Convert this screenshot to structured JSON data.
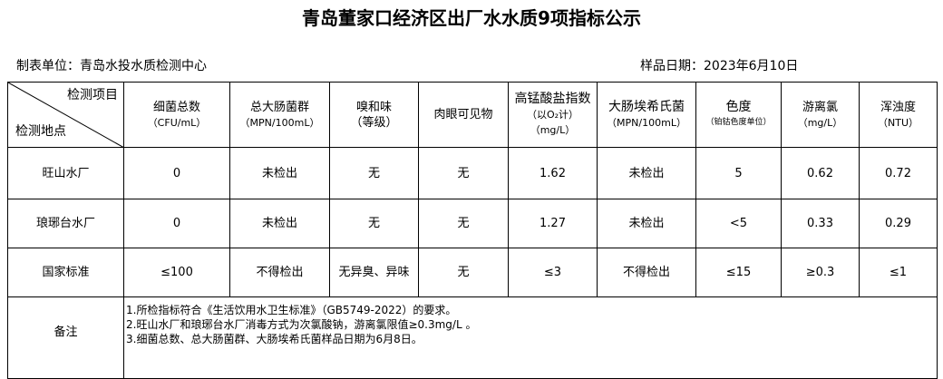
{
  "title": "青岛董家口经济区出厂水水质9项指标公示",
  "unit": "制表单位：青岛水投水质检测中心",
  "date": "样品日期：2023年6月10日",
  "corner": {
    "item": "检测项目",
    "site": "检测地点"
  },
  "headers": [
    {
      "name": "细菌总数",
      "unit": "（CFU/mL）"
    },
    {
      "name": "总大肠菌群",
      "unit": "（MPN/100mL）"
    },
    {
      "name": "嗅和味",
      "unit": "（等级）"
    },
    {
      "name": "肉眼可见物",
      "unit": ""
    },
    {
      "name": "高锰酸盐指数",
      "unit": "（以O₂计）",
      "unit2": "（mg/L）"
    },
    {
      "name": "大肠埃希氏菌",
      "unit": "（MPN/100mL）"
    },
    {
      "name": "色度",
      "unit": "（铂钴色度单位）"
    },
    {
      "name": "游离氯",
      "unit": "（mg/L）"
    },
    {
      "name": "浑浊度",
      "unit": "（NTU）"
    }
  ],
  "rows": [
    {
      "site": "旺山水厂",
      "values": [
        "0",
        "未检出",
        "无",
        "无",
        "1.62",
        "未检出",
        "5",
        "0.62",
        "0.72"
      ]
    },
    {
      "site": "琅琊台水厂",
      "values": [
        "0",
        "未检出",
        "无",
        "无",
        "1.27",
        "未检出",
        "<5",
        "0.33",
        "0.29"
      ]
    },
    {
      "site": "国家标准",
      "values": [
        "≤100",
        "不得检出",
        "无异臭、异味",
        "无",
        "≤3",
        "不得检出",
        "≤15",
        "≥0.3",
        "≤1"
      ]
    }
  ],
  "remarks": {
    "label": "备注",
    "lines": [
      "1.所检指标符合《生活饮用水卫生标准》（GB5749-2022）的要求。",
      "2.旺山水厂和琅琊台水厂消毒方式为次氯酸钠，游离氯限值≥0.3mg/L 。",
      "3.细菌总数、总大肠菌群、大肠埃希氏菌样品日期为6月8日。"
    ]
  }
}
